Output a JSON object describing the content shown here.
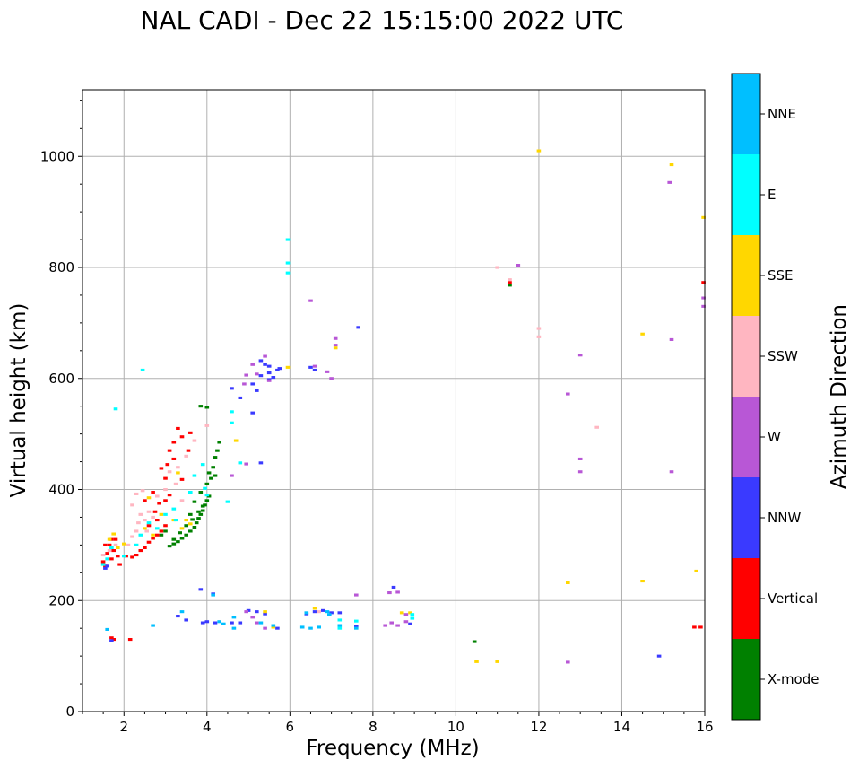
{
  "chart_data": {
    "type": "scatter",
    "title": "NAL CADI - Dec 22 15:15:00 2022 UTC",
    "xlabel": "Frequency (MHz)",
    "ylabel": "Virtual height (km)",
    "xlim": [
      1,
      16
    ],
    "ylim": [
      0,
      1120
    ],
    "xticks": [
      2,
      4,
      6,
      8,
      10,
      12,
      14,
      16
    ],
    "xtick_labels": [
      "2",
      "4",
      "6",
      "8",
      "10",
      "12",
      "14",
      "16"
    ],
    "yticks": [
      0,
      200,
      400,
      600,
      800,
      1000
    ],
    "ytick_labels": [
      "0",
      "200",
      "400",
      "600",
      "800",
      "1000"
    ],
    "grid": true,
    "colorbar": {
      "label": "Azimuth Direction",
      "categories": [
        {
          "name": "X-mode",
          "color": "#008000"
        },
        {
          "name": "Vertical",
          "color": "#ff0000"
        },
        {
          "name": "NNW",
          "color": "#3a3aff"
        },
        {
          "name": "W",
          "color": "#b857d6"
        },
        {
          "name": "SSW",
          "color": "#ffb6c1"
        },
        {
          "name": "SSE",
          "color": "#ffd700"
        },
        {
          "name": "E",
          "color": "#00ffff"
        },
        {
          "name": "NNE",
          "color": "#00bfff"
        }
      ]
    },
    "echo_width_mhz": 0.1,
    "echo_height_km": 5,
    "series": [
      {
        "name": "X-mode",
        "points": [
          [
            3.1,
            298
          ],
          [
            3.2,
            302
          ],
          [
            3.3,
            306
          ],
          [
            3.4,
            312
          ],
          [
            3.5,
            318
          ],
          [
            3.6,
            325
          ],
          [
            3.7,
            332
          ],
          [
            3.75,
            340
          ],
          [
            3.8,
            348
          ],
          [
            3.85,
            355
          ],
          [
            3.9,
            362
          ],
          [
            3.95,
            372
          ],
          [
            4.0,
            380
          ],
          [
            4.05,
            388
          ],
          [
            3.2,
            310
          ],
          [
            3.35,
            322
          ],
          [
            3.5,
            335
          ],
          [
            3.65,
            346
          ],
          [
            3.8,
            360
          ],
          [
            3.9,
            370
          ],
          [
            4.0,
            410
          ],
          [
            4.1,
            420
          ],
          [
            4.15,
            440
          ],
          [
            4.2,
            458
          ],
          [
            4.25,
            470
          ],
          [
            4.3,
            485
          ],
          [
            4.2,
            425
          ],
          [
            4.05,
            430
          ],
          [
            3.85,
            550
          ],
          [
            4.0,
            548
          ],
          [
            2.9,
            318
          ],
          [
            3.0,
            325
          ],
          [
            3.6,
            355
          ],
          [
            3.7,
            378
          ],
          [
            3.85,
            395
          ],
          [
            11.3,
            768
          ],
          [
            10.45,
            126
          ]
        ]
      },
      {
        "name": "Vertical",
        "points": [
          [
            1.5,
            270
          ],
          [
            1.55,
            262
          ],
          [
            1.6,
            285
          ],
          [
            1.65,
            300
          ],
          [
            1.7,
            275
          ],
          [
            1.75,
            290
          ],
          [
            1.8,
            310
          ],
          [
            1.85,
            280
          ],
          [
            1.9,
            265
          ],
          [
            1.55,
            300
          ],
          [
            1.7,
            310
          ],
          [
            2.05,
            280
          ],
          [
            2.2,
            278
          ],
          [
            2.3,
            282
          ],
          [
            2.4,
            290
          ],
          [
            2.5,
            295
          ],
          [
            2.6,
            305
          ],
          [
            2.7,
            312
          ],
          [
            2.8,
            318
          ],
          [
            2.9,
            325
          ],
          [
            3.0,
            335
          ],
          [
            2.6,
            335
          ],
          [
            2.8,
            345
          ],
          [
            2.75,
            360
          ],
          [
            2.85,
            375
          ],
          [
            3.0,
            380
          ],
          [
            3.1,
            390
          ],
          [
            2.5,
            380
          ],
          [
            2.7,
            395
          ],
          [
            3.0,
            420
          ],
          [
            3.05,
            445
          ],
          [
            3.1,
            470
          ],
          [
            3.2,
            485
          ],
          [
            3.3,
            510
          ],
          [
            3.2,
            455
          ],
          [
            2.9,
            438
          ],
          [
            3.4,
            495
          ],
          [
            3.6,
            502
          ],
          [
            3.55,
            470
          ],
          [
            3.4,
            418
          ],
          [
            1.7,
            133
          ],
          [
            1.75,
            130
          ],
          [
            2.15,
            130
          ],
          [
            15.75,
            152
          ],
          [
            15.9,
            152
          ],
          [
            15.97,
            773
          ],
          [
            11.3,
            773
          ]
        ]
      },
      {
        "name": "NNW",
        "points": [
          [
            1.55,
            258
          ],
          [
            1.6,
            262
          ],
          [
            1.7,
            128
          ],
          [
            3.3,
            172
          ],
          [
            3.5,
            165
          ],
          [
            3.9,
            160
          ],
          [
            4.0,
            162
          ],
          [
            4.2,
            160
          ],
          [
            4.6,
            160
          ],
          [
            4.8,
            160
          ],
          [
            5.0,
            182
          ],
          [
            5.2,
            180
          ],
          [
            5.4,
            176
          ],
          [
            5.7,
            150
          ],
          [
            6.4,
            176
          ],
          [
            6.6,
            180
          ],
          [
            6.8,
            182
          ],
          [
            7.0,
            178
          ],
          [
            7.2,
            178
          ],
          [
            7.6,
            154
          ],
          [
            8.5,
            224
          ],
          [
            8.9,
            158
          ],
          [
            4.15,
            212
          ],
          [
            3.85,
            220
          ],
          [
            5.4,
            625
          ],
          [
            5.5,
            610
          ],
          [
            5.3,
            605
          ],
          [
            5.1,
            590
          ],
          [
            5.5,
            598
          ],
          [
            5.6,
            602
          ],
          [
            5.7,
            615
          ],
          [
            5.2,
            578
          ],
          [
            4.8,
            565
          ],
          [
            5.3,
            448
          ],
          [
            5.1,
            538
          ],
          [
            7.65,
            692
          ],
          [
            6.5,
            620
          ],
          [
            4.6,
            582
          ],
          [
            5.3,
            632
          ],
          [
            5.5,
            622
          ],
          [
            14.9,
            100
          ],
          [
            5.75,
            618
          ],
          [
            6.6,
            615
          ]
        ]
      },
      {
        "name": "W",
        "points": [
          [
            4.95,
            606
          ],
          [
            5.5,
            596
          ],
          [
            5.2,
            608
          ],
          [
            4.9,
            590
          ],
          [
            4.6,
            425
          ],
          [
            4.95,
            446
          ],
          [
            4.95,
            180
          ],
          [
            5.2,
            160
          ],
          [
            5.4,
            150
          ],
          [
            6.5,
            740
          ],
          [
            7.1,
            672
          ],
          [
            7.1,
            660
          ],
          [
            6.6,
            622
          ],
          [
            6.9,
            612
          ],
          [
            7.0,
            600
          ],
          [
            8.8,
            175
          ],
          [
            8.8,
            162
          ],
          [
            8.6,
            155
          ],
          [
            8.45,
            160
          ],
          [
            8.3,
            155
          ],
          [
            8.6,
            215
          ],
          [
            8.4,
            214
          ],
          [
            7.6,
            210
          ],
          [
            11.5,
            804
          ],
          [
            13.0,
            642
          ],
          [
            12.7,
            572
          ],
          [
            13.0,
            455
          ],
          [
            13.0,
            432
          ],
          [
            15.2,
            432
          ],
          [
            15.2,
            670
          ],
          [
            15.15,
            953
          ],
          [
            12.7,
            89
          ],
          [
            15.97,
            745
          ],
          [
            15.97,
            730
          ],
          [
            5.4,
            640
          ],
          [
            5.1,
            625
          ],
          [
            5.1,
            170
          ]
        ]
      },
      {
        "name": "SSW",
        "points": [
          [
            1.5,
            282
          ],
          [
            1.65,
            290
          ],
          [
            1.8,
            300
          ],
          [
            2.1,
            300
          ],
          [
            2.2,
            315
          ],
          [
            2.3,
            325
          ],
          [
            2.35,
            340
          ],
          [
            2.4,
            355
          ],
          [
            2.5,
            345
          ],
          [
            2.6,
            360
          ],
          [
            2.2,
            372
          ],
          [
            2.3,
            392
          ],
          [
            2.45,
            398
          ],
          [
            2.7,
            350
          ],
          [
            2.8,
            388
          ],
          [
            3.0,
            400
          ],
          [
            3.1,
            432
          ],
          [
            3.3,
            440
          ],
          [
            3.5,
            460
          ],
          [
            3.7,
            488
          ],
          [
            3.25,
            410
          ],
          [
            3.4,
            380
          ],
          [
            2.55,
            325
          ],
          [
            4.0,
            515
          ],
          [
            11.0,
            800
          ],
          [
            12.0,
            690
          ],
          [
            12.0,
            675
          ],
          [
            11.3,
            778
          ],
          [
            13.4,
            512
          ],
          [
            6.7,
            180
          ]
        ]
      },
      {
        "name": "SSE",
        "points": [
          [
            1.65,
            310
          ],
          [
            1.75,
            320
          ],
          [
            1.85,
            295
          ],
          [
            2.0,
            302
          ],
          [
            2.5,
            330
          ],
          [
            2.7,
            318
          ],
          [
            2.9,
            355
          ],
          [
            3.2,
            345
          ],
          [
            3.4,
            330
          ],
          [
            3.6,
            338
          ],
          [
            3.3,
            430
          ],
          [
            4.7,
            488
          ],
          [
            2.6,
            385
          ],
          [
            3.5,
            345
          ],
          [
            5.4,
            180
          ],
          [
            5.6,
            152
          ],
          [
            6.6,
            186
          ],
          [
            8.9,
            178
          ],
          [
            8.7,
            178
          ],
          [
            12.0,
            1010
          ],
          [
            15.2,
            985
          ],
          [
            14.5,
            680
          ],
          [
            15.97,
            890
          ],
          [
            12.7,
            232
          ],
          [
            14.5,
            235
          ],
          [
            15.8,
            253
          ],
          [
            10.5,
            90
          ],
          [
            11.0,
            90
          ],
          [
            5.95,
            620
          ],
          [
            7.1,
            655
          ]
        ]
      },
      {
        "name": "E",
        "points": [
          [
            1.5,
            265
          ],
          [
            1.6,
            275
          ],
          [
            1.7,
            295
          ],
          [
            2.0,
            280
          ],
          [
            2.3,
            300
          ],
          [
            2.4,
            318
          ],
          [
            2.6,
            340
          ],
          [
            2.8,
            330
          ],
          [
            3.0,
            355
          ],
          [
            3.2,
            365
          ],
          [
            3.6,
            395
          ],
          [
            3.7,
            425
          ],
          [
            4.0,
            390
          ],
          [
            3.9,
            445
          ],
          [
            3.95,
            402
          ],
          [
            4.6,
            540
          ],
          [
            4.6,
            520
          ],
          [
            4.5,
            378
          ],
          [
            5.95,
            850
          ],
          [
            5.95,
            808
          ],
          [
            5.95,
            790
          ],
          [
            2.45,
            615
          ],
          [
            1.8,
            545
          ],
          [
            7.2,
            165
          ],
          [
            7.2,
            150
          ],
          [
            7.6,
            163
          ],
          [
            8.95,
            168
          ],
          [
            8.95,
            175
          ],
          [
            4.8,
            448
          ],
          [
            3.25,
            345
          ]
        ]
      },
      {
        "name": "NNE",
        "points": [
          [
            1.6,
            148
          ],
          [
            2.7,
            155
          ],
          [
            3.4,
            180
          ],
          [
            4.3,
            162
          ],
          [
            4.4,
            158
          ],
          [
            5.3,
            160
          ],
          [
            5.6,
            155
          ],
          [
            6.5,
            150
          ],
          [
            6.7,
            152
          ],
          [
            6.9,
            180
          ],
          [
            7.2,
            155
          ],
          [
            7.6,
            150
          ],
          [
            4.15,
            210
          ],
          [
            6.4,
            178
          ],
          [
            6.3,
            152
          ],
          [
            6.95,
            175
          ],
          [
            4.65,
            150
          ],
          [
            4.65,
            170
          ]
        ]
      }
    ]
  }
}
